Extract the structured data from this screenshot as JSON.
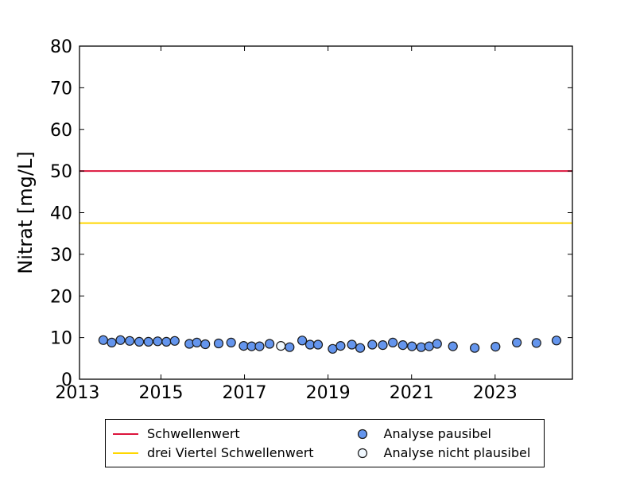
{
  "chart_data": {
    "type": "scatter",
    "title": "",
    "xlabel": "",
    "ylabel": "Nitrat [mg/L]",
    "xlim": [
      2013.05,
      2024.85
    ],
    "ylim": [
      0,
      80
    ],
    "xticks": [
      2013,
      2015,
      2017,
      2019,
      2021,
      2023
    ],
    "yticks": [
      0,
      10,
      20,
      30,
      40,
      50,
      60,
      70,
      80
    ],
    "grid": false,
    "frame_color": "#000000",
    "tick_direction": "in",
    "hlines": [
      {
        "name": "Schwellenwert",
        "y": 50,
        "color": "#dc143c",
        "width": 2
      },
      {
        "name": "drei Viertel Schwellenwert",
        "y": 37.5,
        "color": "#ffd700",
        "width": 2
      }
    ],
    "series": [
      {
        "name": "Analyse pausibel",
        "marker": "circle-filled",
        "fill": "#6495ed",
        "edge": "#1a1a1a",
        "radius": 5.5,
        "points": [
          [
            2013.62,
            9.4
          ],
          [
            2013.82,
            8.8
          ],
          [
            2014.03,
            9.4
          ],
          [
            2014.25,
            9.2
          ],
          [
            2014.48,
            9.0
          ],
          [
            2014.7,
            9.0
          ],
          [
            2014.92,
            9.1
          ],
          [
            2015.13,
            9.0
          ],
          [
            2015.33,
            9.2
          ],
          [
            2015.68,
            8.5
          ],
          [
            2015.86,
            8.8
          ],
          [
            2016.06,
            8.4
          ],
          [
            2016.38,
            8.6
          ],
          [
            2016.68,
            8.8
          ],
          [
            2016.98,
            8.0
          ],
          [
            2017.17,
            7.9
          ],
          [
            2017.36,
            7.9
          ],
          [
            2017.6,
            8.5
          ],
          [
            2018.08,
            7.7
          ],
          [
            2018.38,
            9.3
          ],
          [
            2018.57,
            8.3
          ],
          [
            2018.76,
            8.3
          ],
          [
            2019.11,
            7.3
          ],
          [
            2019.3,
            8.0
          ],
          [
            2019.57,
            8.3
          ],
          [
            2019.77,
            7.5
          ],
          [
            2020.06,
            8.3
          ],
          [
            2020.31,
            8.2
          ],
          [
            2020.55,
            8.8
          ],
          [
            2020.79,
            8.2
          ],
          [
            2021.01,
            7.9
          ],
          [
            2021.23,
            7.7
          ],
          [
            2021.42,
            7.9
          ],
          [
            2021.61,
            8.5
          ],
          [
            2021.99,
            7.9
          ],
          [
            2022.51,
            7.5
          ],
          [
            2023.01,
            7.8
          ],
          [
            2023.52,
            8.8
          ],
          [
            2023.99,
            8.7
          ],
          [
            2024.47,
            9.3
          ]
        ]
      },
      {
        "name": "Analyse nicht plausibel",
        "marker": "circle-open",
        "fill": "#f0f8ff",
        "edge": "#1a1a1a",
        "radius": 5.5,
        "points": [
          [
            2017.87,
            8.0
          ]
        ]
      }
    ],
    "legend": {
      "position": "bottom",
      "border": true,
      "columns": 2,
      "entries": [
        {
          "label": "Schwellenwert",
          "swatch": "line",
          "color": "#dc143c"
        },
        {
          "label": "drei Viertel Schwellenwert",
          "swatch": "line",
          "color": "#ffd700"
        },
        {
          "label": "Analyse pausibel",
          "swatch": "circle-filled",
          "fill": "#6495ed",
          "edge": "#1a1a1a"
        },
        {
          "label": "Analyse nicht plausibel",
          "swatch": "circle-open",
          "fill": "#f0f8ff",
          "edge": "#1a1a1a"
        }
      ]
    }
  }
}
